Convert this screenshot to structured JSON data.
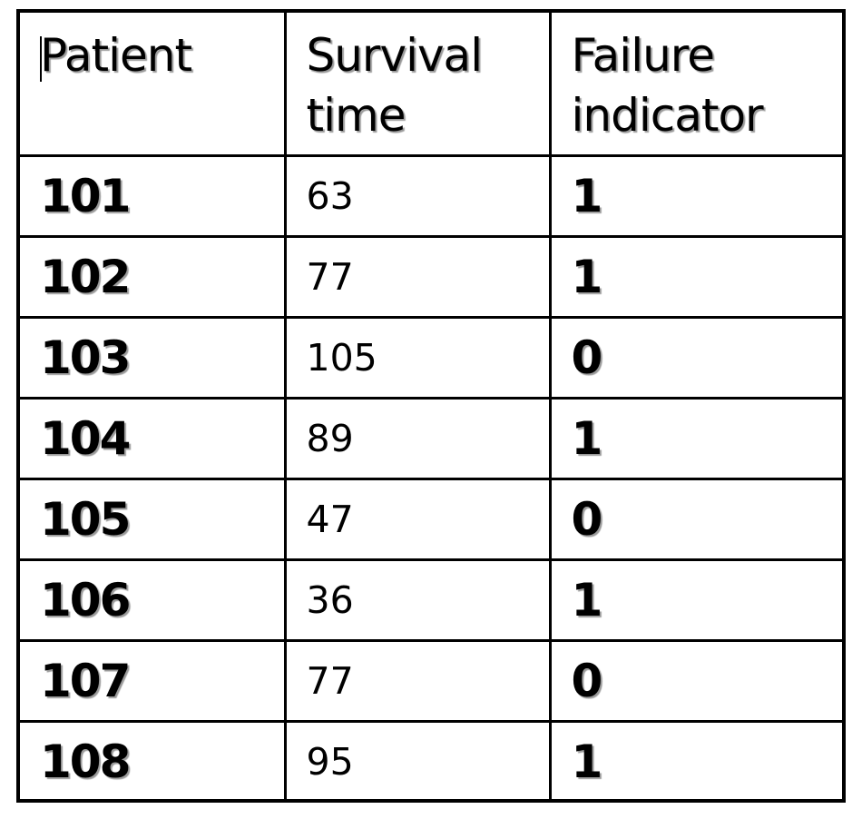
{
  "table": {
    "headers": {
      "patient": "Patient",
      "survival_time": "Survival time",
      "failure_indicator": "Failure indicator"
    },
    "rows": [
      {
        "patient": "101",
        "survival_time": "63",
        "failure_indicator": "1"
      },
      {
        "patient": "102",
        "survival_time": "77",
        "failure_indicator": "1"
      },
      {
        "patient": "103",
        "survival_time": "105",
        "failure_indicator": "0"
      },
      {
        "patient": "104",
        "survival_time": "89",
        "failure_indicator": "1"
      },
      {
        "patient": "105",
        "survival_time": "47",
        "failure_indicator": "0"
      },
      {
        "patient": "106",
        "survival_time": "36",
        "failure_indicator": "1"
      },
      {
        "patient": "107",
        "survival_time": "77",
        "failure_indicator": "0"
      },
      {
        "patient": "108",
        "survival_time": "95",
        "failure_indicator": "1"
      }
    ]
  }
}
